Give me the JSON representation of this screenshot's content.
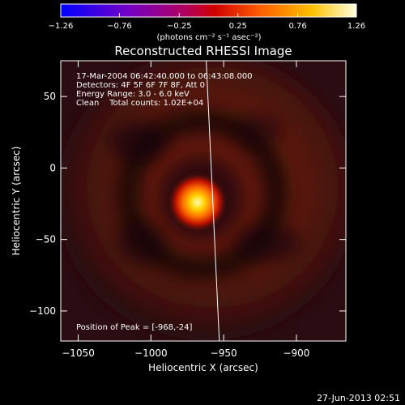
{
  "chart_data": {
    "type": "heatmap",
    "title": "Reconstructed RHESSI Image",
    "xlabel": "Heliocentric X (arcsec)",
    "ylabel": "Heliocentric Y (arcsec)",
    "xlim": [
      -1062,
      -866
    ],
    "ylim": [
      -121,
      75
    ],
    "x_ticks": [
      -1050,
      -1000,
      -950,
      -900
    ],
    "x_tick_labels": [
      "−1050",
      "−1000",
      "−950",
      "−900"
    ],
    "y_ticks": [
      50,
      0,
      -50,
      -100
    ],
    "y_tick_labels": [
      "50",
      "0",
      "−50",
      "−100"
    ],
    "colorbar": {
      "min": -1.26,
      "max": 1.26,
      "ticks": [
        -1.26,
        -0.76,
        -0.25,
        0.25,
        0.76,
        1.26
      ],
      "tick_labels": [
        "−1.26",
        "−0.76",
        "−0.25",
        "0.25",
        "0.76",
        "1.26"
      ],
      "units_label": "(photons cm⁻² s⁻¹ asec⁻²)"
    },
    "info_lines": [
      "17-Mar-2004 06:42:40.000 to 06:43:08.000",
      "Detectors: 4F 5F 6F 7F 8F, Att 0",
      "Energy Range: 3.0 - 6.0 keV",
      "Clean    Total counts: 1.02E+04"
    ],
    "peak_label": "Position of Peak = [-968,-24]",
    "peak": {
      "x": -968,
      "y": -24
    },
    "limb_line": [
      [
        -962,
        75
      ],
      [
        -953,
        -121
      ]
    ],
    "grid": false
  },
  "footer": {
    "timestamp": "27-Jun-2013 02:51"
  }
}
